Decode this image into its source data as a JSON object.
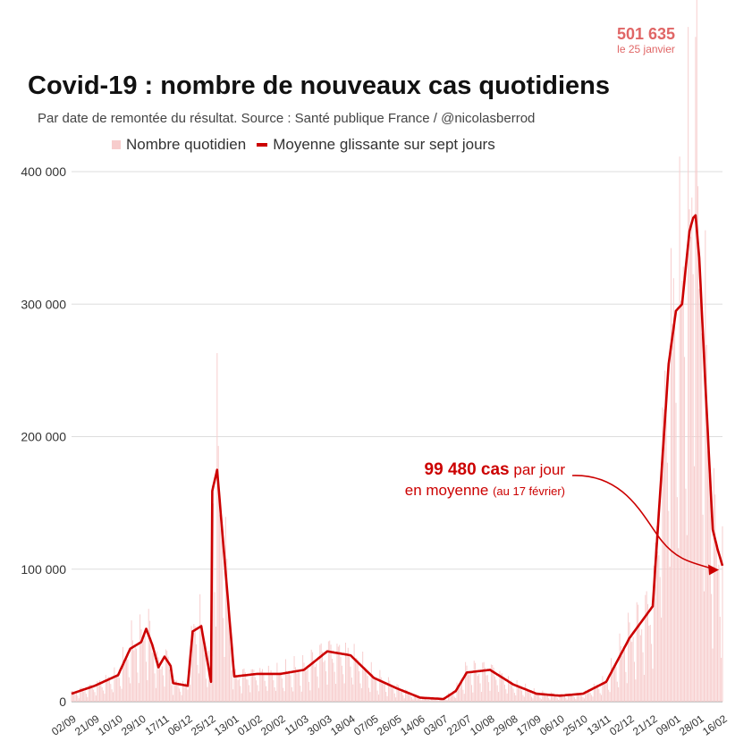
{
  "header": {
    "title": "Covid-19 : nombre de nouveaux cas quotidiens",
    "subtitle": "Par date de remontée du résultat. Source : Santé publique France / @nicolasberrod"
  },
  "legend": {
    "bars_label": "Nombre quotidien",
    "line_label": "Moyenne glissante sur sept jours"
  },
  "peak_label": {
    "value": "501 635",
    "date": "le 25 janvier"
  },
  "annotation": {
    "value": "99 480 cas",
    "line1_rest": "par jour",
    "line2": "en moyenne",
    "line2_small": "(au 17 février)"
  },
  "colors": {
    "bar": "#f7cccc",
    "line": "#cc0000",
    "peak_text": "#e06666",
    "grid": "#dddddd"
  },
  "chart_data": {
    "type": "bar+line",
    "title": "Covid-19 : nombre de nouveaux cas quotidiens",
    "ylim": [
      0,
      400000
    ],
    "y_ticks": [
      0,
      100000,
      200000,
      300000,
      400000
    ],
    "y_tick_labels": [
      "0",
      "100 000",
      "200 000",
      "300 000",
      "400 000"
    ],
    "x_tick_labels": [
      "02/09",
      "21/09",
      "10/10",
      "29/10",
      "17/11",
      "06/12",
      "25/12",
      "13/01",
      "01/02",
      "20/02",
      "11/03",
      "30/03",
      "18/04",
      "07/05",
      "26/05",
      "14/06",
      "03/07",
      "22/07",
      "10/08",
      "29/08",
      "17/09",
      "06/10",
      "25/10",
      "13/11",
      "02/12",
      "21/12",
      "09/01",
      "28/01",
      "16/02"
    ],
    "series": [
      {
        "name": "Moyenne glissante sur sept jours",
        "kind": "line",
        "x_dates": [
          "02/09",
          "21/09",
          "10/10",
          "20/10",
          "29/10",
          "02/11",
          "07/11",
          "12/11",
          "17/11",
          "24/11",
          "06/12",
          "25/12",
          "13/01",
          "01/02",
          "20/02",
          "11/03",
          "30/03",
          "08/04",
          "18/04",
          "07/05",
          "26/05",
          "14/06",
          "03/07",
          "13/07",
          "22/07",
          "10/08",
          "29/08",
          "17/09",
          "06/10",
          "25/10",
          "13/11",
          "22/11",
          "02/12",
          "10/12",
          "17/12",
          "21/12",
          "25/12",
          "30/12",
          "03/01",
          "09/01",
          "14/01",
          "20/01",
          "23/01",
          "25/01",
          "28/01",
          "02/02",
          "08/02",
          "12/02",
          "17/02"
        ],
        "values": [
          6000,
          12000,
          20000,
          40000,
          45000,
          55000,
          43000,
          26000,
          34000,
          14000,
          12000,
          15000,
          19000,
          21000,
          21000,
          24000,
          38000,
          38000,
          35000,
          18000,
          10000,
          3000,
          2000,
          8000,
          22000,
          24000,
          13000,
          6000,
          4500,
          6000,
          15000,
          27000,
          48000,
          53000,
          57000,
          72000,
          155000,
          175000,
          255000,
          295000,
          300000,
          355000,
          365000,
          367000,
          335000,
          240000,
          130000,
          115000,
          99480
        ]
      },
      {
        "name": "Nombre quotidien",
        "kind": "bar",
        "peak": {
          "date": "25/01",
          "value": 501635
        },
        "note": "daily counts fluctuate around the seven-day average"
      }
    ]
  }
}
